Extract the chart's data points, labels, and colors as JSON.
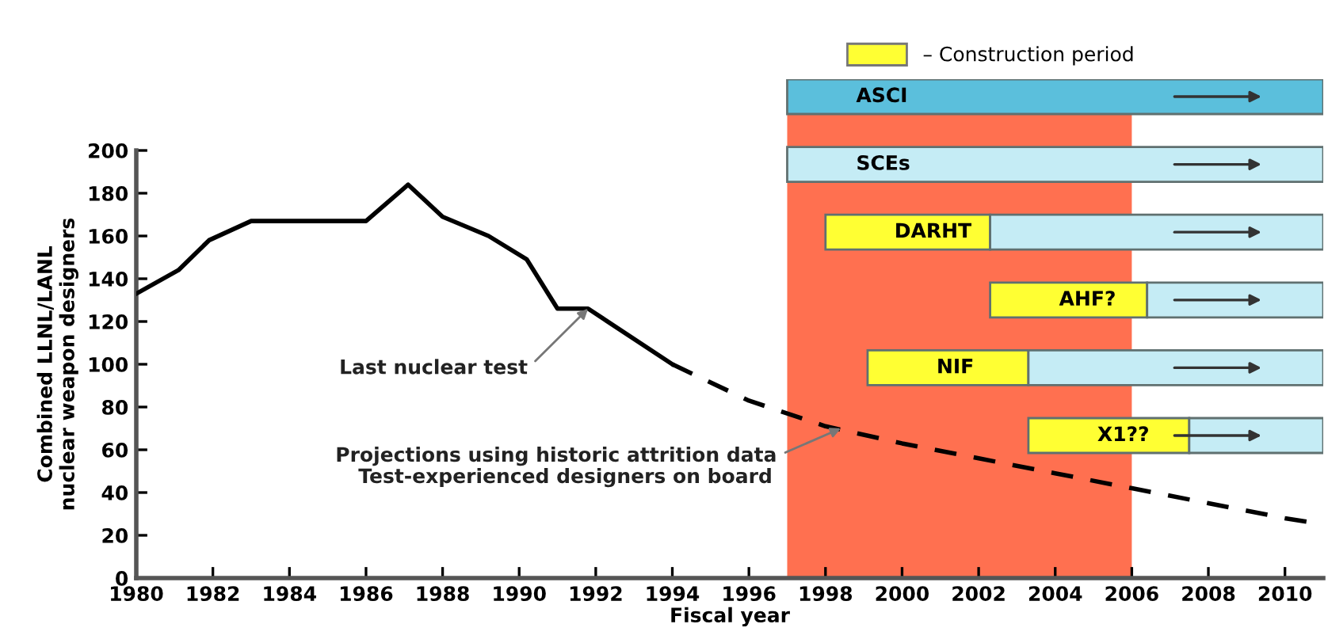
{
  "chart_data": [
    {
      "type": "line",
      "xlabel": "Fiscal year",
      "ylabel": "Combined LLNL/LANL\nnuclear weapon designers",
      "xlim": [
        1980,
        2011
      ],
      "ylim": [
        0,
        200
      ],
      "xticks": [
        1980,
        1982,
        1984,
        1986,
        1988,
        1990,
        1992,
        1994,
        1996,
        1998,
        2000,
        2002,
        2004,
        2006,
        2008,
        2010
      ],
      "yticks": [
        0,
        20,
        40,
        60,
        80,
        100,
        120,
        140,
        160,
        180,
        200
      ],
      "grid": false,
      "marker": "none",
      "series": [
        {
          "color": "#000000",
          "line_style": "solid",
          "x": [
            1980,
            1981.1,
            1981.9,
            1983,
            1986,
            1987.1,
            1988,
            1989.2,
            1990.2,
            1991,
            1991.8,
            1994
          ],
          "values": [
            133,
            144,
            158,
            167,
            167,
            184,
            169,
            160,
            149,
            126,
            126,
            100
          ]
        },
        {
          "color": "#000000",
          "line_style": "dashed",
          "x": [
            1994,
            1996,
            1998,
            2000,
            2002,
            2004,
            2006,
            2008,
            2010,
            2010.7
          ],
          "values": [
            100,
            83,
            71,
            63,
            56,
            49,
            42,
            35,
            28,
            26
          ]
        }
      ],
      "bands": [
        {
          "axis": "x",
          "from": 1997,
          "to": 2006,
          "color": "#ff7050"
        }
      ],
      "annotations": [
        {
          "text": "Last nuclear test",
          "x": 1991.8,
          "y": 126
        },
        {
          "text": "Projections using historic attrition data",
          "x": 1998.4,
          "y": 70
        },
        "Test-experienced designers on board"
      ]
    },
    {
      "type": "bar",
      "orientation": "horizontal",
      "tick_labels": false,
      "legend": "top",
      "xlim": [
        1980,
        2011
      ],
      "categories": [
        "ASCI",
        "SCEs",
        "DARHT",
        "AHF?",
        "NIF",
        "X1??"
      ],
      "series": [
        {
          "name": "– Construction period",
          "color": "#ffff33",
          "base": [
            null,
            null,
            1998,
            2002.3,
            1999.1,
            2003.3
          ],
          "values": [
            null,
            null,
            4.3,
            4.1,
            4.2,
            4.2
          ]
        },
        {
          "colors": [
            "#5bbfdc",
            "#c5ecf5",
            "#c5ecf5",
            "#c5ecf5",
            "#c5ecf5",
            "#c5ecf5"
          ],
          "base": [
            1997,
            1997,
            2002.3,
            2006.4,
            2003.3,
            2007.5
          ],
          "values": [
            14,
            14,
            8.7,
            4.6,
            7.7,
            3.5
          ]
        }
      ]
    }
  ]
}
